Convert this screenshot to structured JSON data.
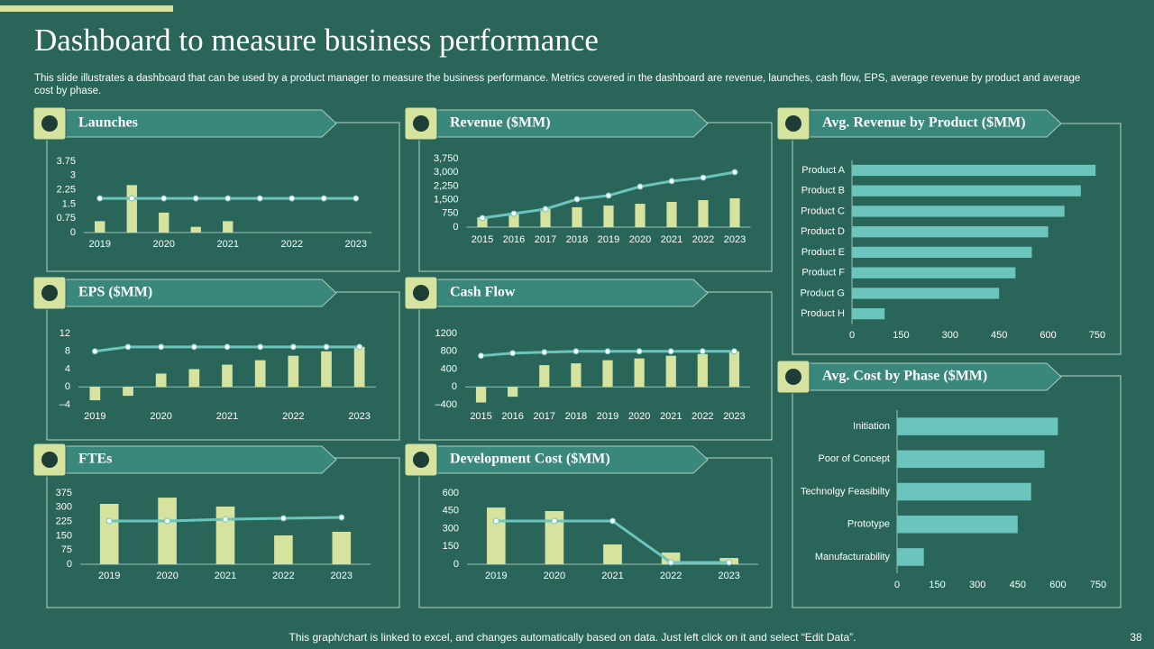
{
  "title": "Dashboard to measure business performance",
  "subtitle": "This slide illustrates a dashboard that can be used by a product manager to measure the business performance. Metrics covered in the dashboard are revenue, launches, cash flow, EPS, average revenue by product and average cost by phase.",
  "footer": "This graph/chart is linked to excel, and changes automatically based on data. Just left click on it and select “Edit Data”.",
  "page_number": "38",
  "chart_data": [
    {
      "type": "combo",
      "title": "Launches",
      "categories": [
        "2019",
        null,
        "2020",
        null,
        "2021",
        null,
        "2022",
        null,
        "2023"
      ],
      "series": [
        {
          "type": "bar",
          "color": "#d5e39e",
          "values": [
            0.6,
            2.5,
            1.05,
            0.3,
            0.6,
            null,
            null,
            null,
            null
          ]
        },
        {
          "type": "line",
          "color": "#6cc5bd",
          "values": [
            1.8,
            1.8,
            1.8,
            1.8,
            1.8,
            1.8,
            1.8,
            1.8,
            1.8
          ]
        }
      ],
      "ylim": [
        0,
        3.75
      ],
      "yticks": [
        0,
        0.75,
        1.5,
        2.25,
        3,
        3.75
      ]
    },
    {
      "type": "combo",
      "title": "Revenue ($MM)",
      "categories": [
        "2015",
        "2016",
        "2017",
        "2018",
        "2019",
        "2020",
        "2021",
        "2022",
        "2023"
      ],
      "series": [
        {
          "type": "bar",
          "color": "#d5e39e",
          "values": [
            540,
            790,
            1040,
            1090,
            1180,
            1280,
            1380,
            1480,
            1580
          ]
        },
        {
          "type": "line",
          "color": "#6cc5bd",
          "values": [
            500,
            740,
            990,
            1530,
            1730,
            2220,
            2520,
            2710,
            3010
          ]
        }
      ],
      "ylim": [
        0,
        3750
      ],
      "yticks": [
        0,
        750,
        {
          "value": 1500,
          "label": "1,500"
        },
        {
          "value": 2250,
          "label": "2,250"
        },
        {
          "value": 3000,
          "label": "3,000"
        },
        {
          "value": 3750,
          "label": "3,750"
        }
      ]
    },
    {
      "type": "combo",
      "title": "EPS ($MM)",
      "categories": [
        "2019",
        null,
        "2020",
        null,
        "2021",
        null,
        "2022",
        null,
        "2023"
      ],
      "series": [
        {
          "type": "bar",
          "color": "#d5e39e",
          "values": [
            -3,
            -2,
            3,
            4,
            5,
            6,
            7,
            8,
            9
          ]
        },
        {
          "type": "line",
          "color": "#6cc5bd",
          "values": [
            8,
            9,
            9,
            9,
            9,
            9,
            9,
            9,
            9
          ]
        }
      ],
      "ylim": [
        -4,
        12
      ],
      "yticks": [
        {
          "value": -4,
          "label": "–4"
        },
        0,
        4,
        8,
        12
      ]
    },
    {
      "type": "combo",
      "title": "Cash Flow",
      "categories": [
        "2015",
        "2016",
        "2017",
        "2018",
        "2019",
        "2020",
        "2021",
        "2022",
        "2023"
      ],
      "series": [
        {
          "type": "bar",
          "color": "#d5e39e",
          "values": [
            -350,
            -220,
            490,
            530,
            600,
            640,
            700,
            740,
            800
          ]
        },
        {
          "type": "line",
          "color": "#6cc5bd",
          "values": [
            700,
            760,
            780,
            800,
            800,
            800,
            800,
            800,
            800
          ]
        }
      ],
      "ylim": [
        -400,
        1200
      ],
      "yticks": [
        {
          "value": -400,
          "label": "–400"
        },
        0,
        400,
        800,
        1200
      ]
    },
    {
      "type": "combo",
      "title": "FTEs",
      "categories": [
        "2019",
        "2020",
        "2021",
        "2022",
        "2023"
      ],
      "series": [
        {
          "type": "bar",
          "color": "#d5e39e",
          "values": [
            318,
            351,
            304,
            152,
            171
          ]
        },
        {
          "type": "line",
          "color": "#6cc5bd",
          "values": [
            228,
            228,
            237,
            242,
            247
          ]
        }
      ],
      "ylim": [
        0,
        375
      ],
      "yticks": [
        0,
        75,
        150,
        225,
        300,
        375
      ]
    },
    {
      "type": "combo",
      "title": "Development Cost ($MM)",
      "categories": [
        "2019",
        "2020",
        "2021",
        "2022",
        "2023"
      ],
      "series": [
        {
          "type": "bar",
          "color": "#d5e39e",
          "values": [
            478,
            448,
            167,
            99,
            53
          ]
        },
        {
          "type": "line",
          "color": "#6cc5bd",
          "values": [
            365,
            365,
            365,
            15,
            15
          ]
        }
      ],
      "ylim": [
        0,
        600
      ],
      "yticks": [
        0,
        150,
        300,
        450,
        600
      ]
    },
    {
      "type": "hbar",
      "title": "Avg. Revenue by Product ($MM)",
      "categories": [
        "Product A",
        "Product B",
        "Product C",
        "Product D",
        "Product E",
        "Product F",
        "Product G",
        "Product H"
      ],
      "values": [
        745,
        700,
        650,
        600,
        550,
        500,
        450,
        100
      ],
      "color": "#6cc5bd",
      "xlim": [
        0,
        750
      ],
      "xticks": [
        0,
        150,
        300,
        450,
        600,
        750
      ]
    },
    {
      "type": "hbar",
      "title": "Avg. Cost by Phase ($MM)",
      "categories": [
        "Initiation",
        "Poor of Concept",
        "Technolgy Feasibilty",
        "Prototype",
        "Manufacturability"
      ],
      "values": [
        600,
        550,
        500,
        450,
        100
      ],
      "color": "#6cc5bd",
      "xlim": [
        0,
        750
      ],
      "xticks": [
        0,
        150,
        300,
        450,
        600,
        750
      ]
    }
  ]
}
